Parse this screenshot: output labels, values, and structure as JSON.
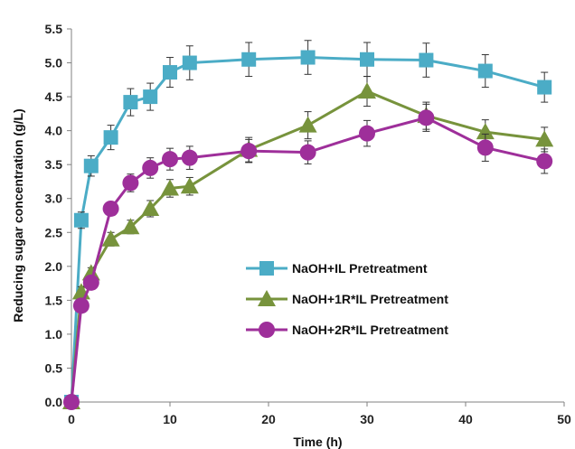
{
  "chart_data": {
    "type": "line",
    "xlabel": "Time (h)",
    "ylabel": "Reducing sugar concentration (g/L)",
    "xlim": [
      0,
      50
    ],
    "ylim": [
      0,
      5.5
    ],
    "x_ticks": [
      "0",
      "10",
      "20",
      "30",
      "40",
      "50"
    ],
    "y_ticks": [
      "0.0",
      "0.5",
      "1.0",
      "1.5",
      "2.0",
      "2.5",
      "3.0",
      "3.5",
      "4.0",
      "4.5",
      "5.0",
      "5.5"
    ],
    "grid": false,
    "legend_position": "center-right",
    "series": [
      {
        "name": "NaOH+IL Pretreatment",
        "color": "#4bacc6",
        "marker": "square",
        "x": [
          0,
          1,
          2,
          4,
          6,
          8,
          10,
          12,
          18,
          24,
          30,
          36,
          42,
          48
        ],
        "y": [
          0,
          2.68,
          3.48,
          3.9,
          4.42,
          4.5,
          4.86,
          5.0,
          5.05,
          5.08,
          5.05,
          5.04,
          4.88,
          4.64
        ],
        "error": [
          0,
          0.12,
          0.15,
          0.18,
          0.2,
          0.2,
          0.22,
          0.25,
          0.25,
          0.25,
          0.25,
          0.25,
          0.24,
          0.22
        ]
      },
      {
        "name": "NaOH+1R*IL Pretreatment",
        "color": "#77933c",
        "marker": "triangle",
        "x": [
          0,
          1,
          2,
          4,
          6,
          8,
          10,
          12,
          18,
          24,
          30,
          36,
          42,
          48
        ],
        "y": [
          0,
          1.62,
          1.9,
          2.4,
          2.58,
          2.85,
          3.15,
          3.18,
          3.72,
          4.08,
          4.58,
          4.22,
          3.98,
          3.87
        ],
        "error": [
          0,
          0.08,
          0.08,
          0.1,
          0.1,
          0.12,
          0.13,
          0.13,
          0.18,
          0.2,
          0.22,
          0.2,
          0.18,
          0.18
        ]
      },
      {
        "name": "NaOH+2R*IL Pretreatment",
        "color": "#9e2f9a",
        "marker": "circle",
        "x": [
          0,
          1,
          2,
          4,
          6,
          8,
          10,
          12,
          18,
          24,
          30,
          36,
          42,
          48
        ],
        "y": [
          0,
          1.42,
          1.76,
          2.85,
          3.23,
          3.45,
          3.58,
          3.6,
          3.7,
          3.68,
          3.96,
          4.19,
          3.75,
          3.55
        ],
        "error": [
          0,
          0.05,
          0.05,
          0.1,
          0.13,
          0.15,
          0.16,
          0.17,
          0.17,
          0.17,
          0.19,
          0.2,
          0.2,
          0.18
        ]
      }
    ]
  }
}
